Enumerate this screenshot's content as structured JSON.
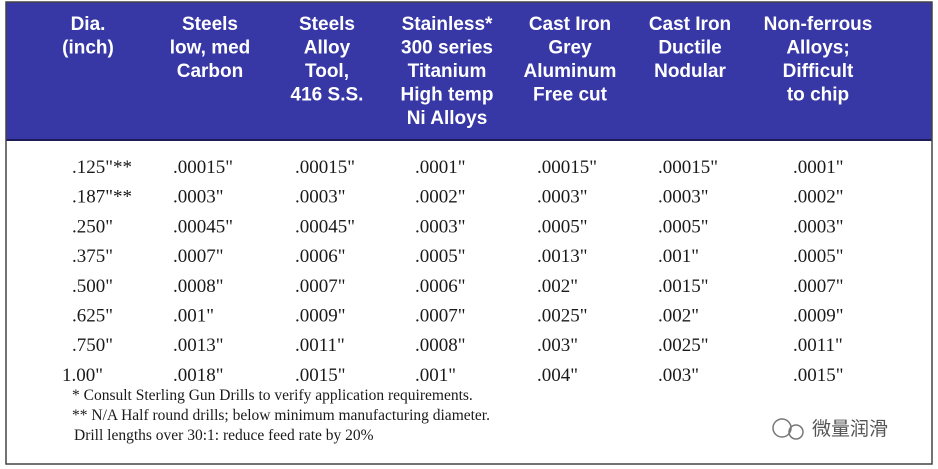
{
  "table": {
    "header": [
      [
        "Dia.",
        "(inch)"
      ],
      [
        "Steels",
        "low, med",
        "Carbon"
      ],
      [
        "Steels",
        "Alloy",
        "Tool,",
        "416 S.S."
      ],
      [
        "Stainless*",
        "300 series",
        "Titanium",
        "High temp",
        "Ni Alloys"
      ],
      [
        "Cast Iron",
        "Grey",
        "Aluminum",
        "Free cut"
      ],
      [
        "Cast Iron",
        "Ductile",
        "Nodular"
      ],
      [
        "Non-ferrous",
        "Alloys;",
        "Difficult",
        "to chip"
      ]
    ],
    "rows": [
      [
        ".125\"**",
        ".00015\"",
        ".00015\"",
        ".0001\"",
        ".00015\"",
        ".00015\"",
        ".0001\""
      ],
      [
        ".187\"**",
        ".0003\"",
        ".0003\"",
        ".0002\"",
        ".0003\"",
        ".0003\"",
        ".0002\""
      ],
      [
        ".250\"",
        ".00045\"",
        ".00045\"",
        ".0003\"",
        ".0005\"",
        ".0005\"",
        ".0003\""
      ],
      [
        ".375\"",
        ".0007\"",
        ".0006\"",
        ".0005\"",
        ".0013\"",
        ".001\"",
        ".0005\""
      ],
      [
        ".500\"",
        ".0008\"",
        ".0007\"",
        ".0006\"",
        ".002\"",
        ".0015\"",
        ".0007\""
      ],
      [
        ".625\"",
        ".001\"",
        ".0009\"",
        ".0007\"",
        ".0025\"",
        ".002\"",
        ".0009\""
      ],
      [
        ".750\"",
        ".0013\"",
        ".0011\"",
        ".0008\"",
        ".003\"",
        ".0025\"",
        ".0011\""
      ],
      [
        "1.00\"",
        ".0018\"",
        ".0015\"",
        ".001\"",
        ".004\"",
        ".003\"",
        ".0015\""
      ]
    ],
    "notes": [
      "* Consult Sterling Gun Drills to verify application requirements.",
      "** N/A Half round drills; below minimum manufacturing diameter.",
      "Drill lengths over 30:1: reduce feed rate by 20%"
    ]
  },
  "watermark": "微量润滑"
}
